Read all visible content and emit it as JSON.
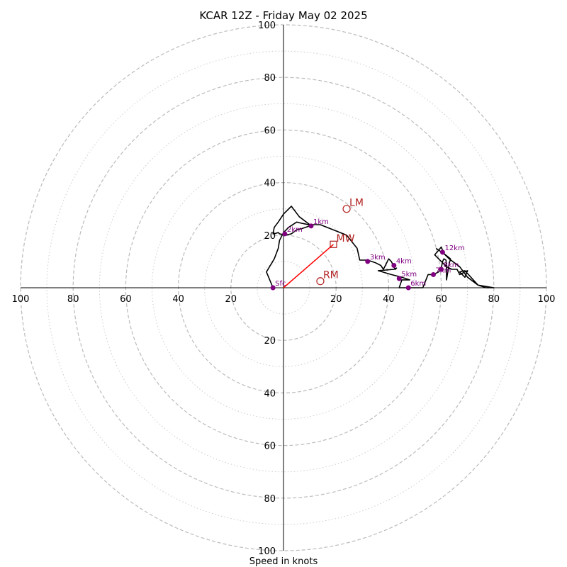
{
  "chart_data": {
    "type": "line",
    "title": "KCAR 12Z - Friday May 02 2025",
    "xlabel": "Speed in knots",
    "ylabel": "",
    "xlim": [
      -100,
      100
    ],
    "ylim": [
      -100,
      100
    ],
    "major_rings": [
      20,
      40,
      60,
      80,
      100
    ],
    "minor_rings": [
      10,
      30,
      50,
      70,
      90
    ],
    "tick_labels": {
      "top": [
        "20",
        "40",
        "60",
        "80",
        "100"
      ],
      "bottom": [
        "20",
        "40",
        "60",
        "80",
        "100"
      ],
      "left": [
        "20",
        "40",
        "60",
        "80",
        "100"
      ],
      "right": [
        "20",
        "40",
        "60",
        "80",
        "100"
      ]
    },
    "hodograph": {
      "color": "#000000",
      "u": [
        -4,
        -6.5,
        -5,
        -3.5,
        -2,
        -1.5,
        0,
        2,
        5,
        7,
        8,
        9.5,
        10,
        10.3,
        10,
        7,
        5,
        3,
        1,
        0,
        -1.5,
        -2,
        -3.5,
        -4,
        -3.5,
        -2,
        0,
        3,
        6,
        10,
        14,
        19,
        24,
        26,
        28,
        29,
        32,
        35,
        37,
        38,
        39,
        40,
        41,
        42,
        42.5,
        43,
        42,
        36,
        41,
        45,
        48,
        45,
        44,
        45,
        53,
        54,
        55,
        56,
        57,
        59,
        60,
        60.5,
        61,
        61.8,
        62,
        62,
        63,
        63.5,
        61,
        60,
        57.5,
        62,
        64,
        66,
        67,
        69,
        70,
        69,
        67,
        69,
        74,
        80,
        77,
        74,
        70,
        67,
        63,
        61,
        58
      ],
      "v": [
        0,
        6,
        8.5,
        11,
        15,
        18,
        21,
        23,
        25,
        24.5,
        24.3,
        24,
        23.5,
        24,
        23.5,
        22.5,
        22,
        20.5,
        20,
        20.2,
        20.5,
        21,
        20.5,
        20.5,
        23,
        25,
        28,
        31,
        27,
        24,
        24,
        22,
        20,
        17.5,
        15,
        10.5,
        10.5,
        9.5,
        8.5,
        7,
        9,
        11,
        10,
        8,
        7,
        7.5,
        7,
        6.5,
        5,
        4,
        3,
        3,
        0,
        0,
        0,
        2.5,
        5,
        5,
        5,
        6,
        7.5,
        10,
        11,
        10.5,
        7,
        3,
        9,
        11,
        13,
        15.5,
        12.5,
        8,
        7,
        7,
        5,
        6,
        6.5,
        4,
        6,
        6.5,
        1,
        0,
        0,
        1,
        4,
        8,
        11,
        13,
        15
      ]
    },
    "height_markers": [
      {
        "label": "Sfc",
        "u": -4,
        "v": 0
      },
      {
        "label": "1km",
        "u": 10.5,
        "v": 23.5
      },
      {
        "label": "2km",
        "u": 0.5,
        "v": 20.5
      },
      {
        "label": "3km",
        "u": 32,
        "v": 10
      },
      {
        "label": "4km",
        "u": 42,
        "v": 8.5
      },
      {
        "label": "5km",
        "u": 44,
        "v": 3.5
      },
      {
        "label": "6km",
        "u": 47.5,
        "v": 0
      },
      {
        "label": "7km",
        "u": 57,
        "v": 5
      },
      {
        "label": "8km",
        "u": 60,
        "v": 7
      },
      {
        "label": "12km",
        "u": 60.5,
        "v": 13.5
      }
    ],
    "storm_motions": [
      {
        "label": "LM",
        "u": 24,
        "v": 30,
        "marker": "circle"
      },
      {
        "label": "MW",
        "u": 19,
        "v": 16.5,
        "marker": "square"
      },
      {
        "label": "RM",
        "u": 14,
        "v": 2.5,
        "marker": "circle"
      }
    ],
    "mean_wind_vector": {
      "u": 19,
      "v": 16.5,
      "color": "#ff0000"
    },
    "colors": {
      "major_ring": "#bbbbbb",
      "minor_ring": "#cccccc",
      "marker": "#800080",
      "storm_motion": "#b22222"
    }
  }
}
